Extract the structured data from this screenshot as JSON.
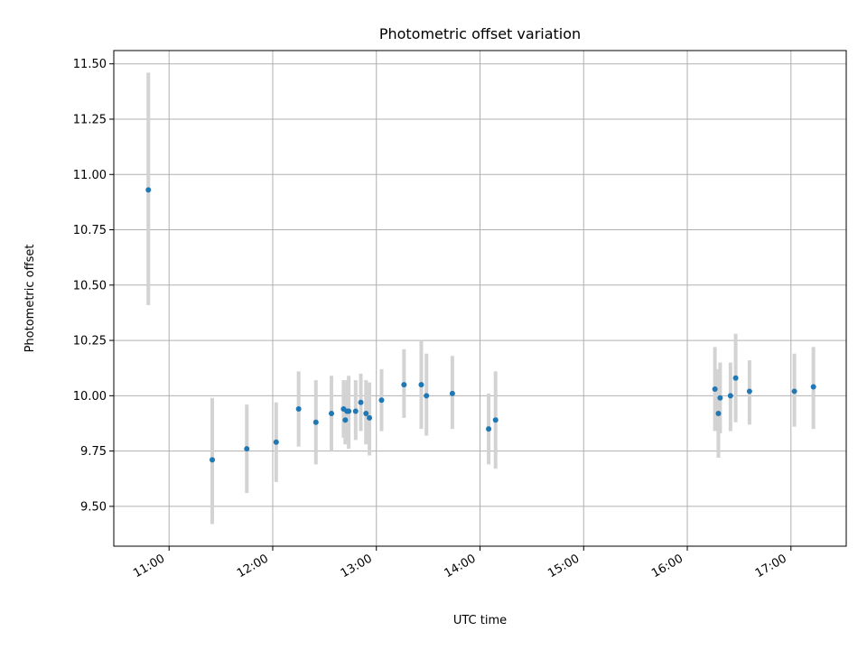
{
  "chart_data": {
    "type": "scatter",
    "title": "Photometric offset variation",
    "xlabel": "UTC time",
    "ylabel": "Photometric offset",
    "x_axis_type": "time",
    "xlim": [
      "10:28",
      "17:32"
    ],
    "ylim": [
      9.32,
      11.56
    ],
    "grid": true,
    "x_tick_labels": [
      "11:00",
      "12:00",
      "13:00",
      "14:00",
      "15:00",
      "16:00",
      "17:00"
    ],
    "y_ticks": [
      9.5,
      9.75,
      10.0,
      10.25,
      10.5,
      10.75,
      11.0,
      11.25,
      11.5
    ],
    "y_tick_labels": [
      "9.50",
      "9.75",
      "10.00",
      "10.25",
      "10.50",
      "10.75",
      "11.00",
      "11.25",
      "11.50"
    ],
    "marker_color": "#1f77b4",
    "errorbar_color": "#d3d3d3",
    "series": [
      {
        "points": [
          {
            "x": "10:48",
            "y": 10.93,
            "ylo": 10.41,
            "yhi": 11.46
          },
          {
            "x": "11:25",
            "y": 9.71,
            "ylo": 9.42,
            "yhi": 9.99
          },
          {
            "x": "11:45",
            "y": 9.76,
            "ylo": 9.56,
            "yhi": 9.96
          },
          {
            "x": "12:02",
            "y": 9.79,
            "ylo": 9.61,
            "yhi": 9.97
          },
          {
            "x": "12:15",
            "y": 9.94,
            "ylo": 9.77,
            "yhi": 10.11
          },
          {
            "x": "12:25",
            "y": 9.88,
            "ylo": 9.69,
            "yhi": 10.07
          },
          {
            "x": "12:34",
            "y": 9.92,
            "ylo": 9.75,
            "yhi": 10.09
          },
          {
            "x": "12:41",
            "y": 9.94,
            "ylo": 9.81,
            "yhi": 10.07
          },
          {
            "x": "12:42",
            "y": 9.89,
            "ylo": 9.78,
            "yhi": 10.01
          },
          {
            "x": "12:43",
            "y": 9.93,
            "ylo": 9.79,
            "yhi": 10.07
          },
          {
            "x": "12:44",
            "y": 9.93,
            "ylo": 9.76,
            "yhi": 10.09
          },
          {
            "x": "12:48",
            "y": 9.93,
            "ylo": 9.8,
            "yhi": 10.07
          },
          {
            "x": "12:51",
            "y": 9.97,
            "ylo": 9.84,
            "yhi": 10.1
          },
          {
            "x": "12:54",
            "y": 9.92,
            "ylo": 9.78,
            "yhi": 10.07
          },
          {
            "x": "12:56",
            "y": 9.9,
            "ylo": 9.73,
            "yhi": 10.06
          },
          {
            "x": "13:03",
            "y": 9.98,
            "ylo": 9.84,
            "yhi": 10.12
          },
          {
            "x": "13:16",
            "y": 10.05,
            "ylo": 9.9,
            "yhi": 10.21
          },
          {
            "x": "13:26",
            "y": 10.05,
            "ylo": 9.85,
            "yhi": 10.25
          },
          {
            "x": "13:29",
            "y": 10.0,
            "ylo": 9.82,
            "yhi": 10.19
          },
          {
            "x": "13:44",
            "y": 10.01,
            "ylo": 9.85,
            "yhi": 10.18
          },
          {
            "x": "14:05",
            "y": 9.85,
            "ylo": 9.69,
            "yhi": 10.01
          },
          {
            "x": "14:09",
            "y": 9.89,
            "ylo": 9.67,
            "yhi": 10.11
          },
          {
            "x": "16:16",
            "y": 10.03,
            "ylo": 9.84,
            "yhi": 10.22
          },
          {
            "x": "16:18",
            "y": 9.92,
            "ylo": 9.72,
            "yhi": 10.12
          },
          {
            "x": "16:19",
            "y": 9.99,
            "ylo": 9.83,
            "yhi": 10.15
          },
          {
            "x": "16:25",
            "y": 10.0,
            "ylo": 9.84,
            "yhi": 10.15
          },
          {
            "x": "16:28",
            "y": 10.08,
            "ylo": 9.88,
            "yhi": 10.28
          },
          {
            "x": "16:36",
            "y": 10.02,
            "ylo": 9.87,
            "yhi": 10.16
          },
          {
            "x": "17:02",
            "y": 10.02,
            "ylo": 9.86,
            "yhi": 10.19
          },
          {
            "x": "17:13",
            "y": 10.04,
            "ylo": 9.85,
            "yhi": 10.22
          }
        ]
      }
    ]
  }
}
